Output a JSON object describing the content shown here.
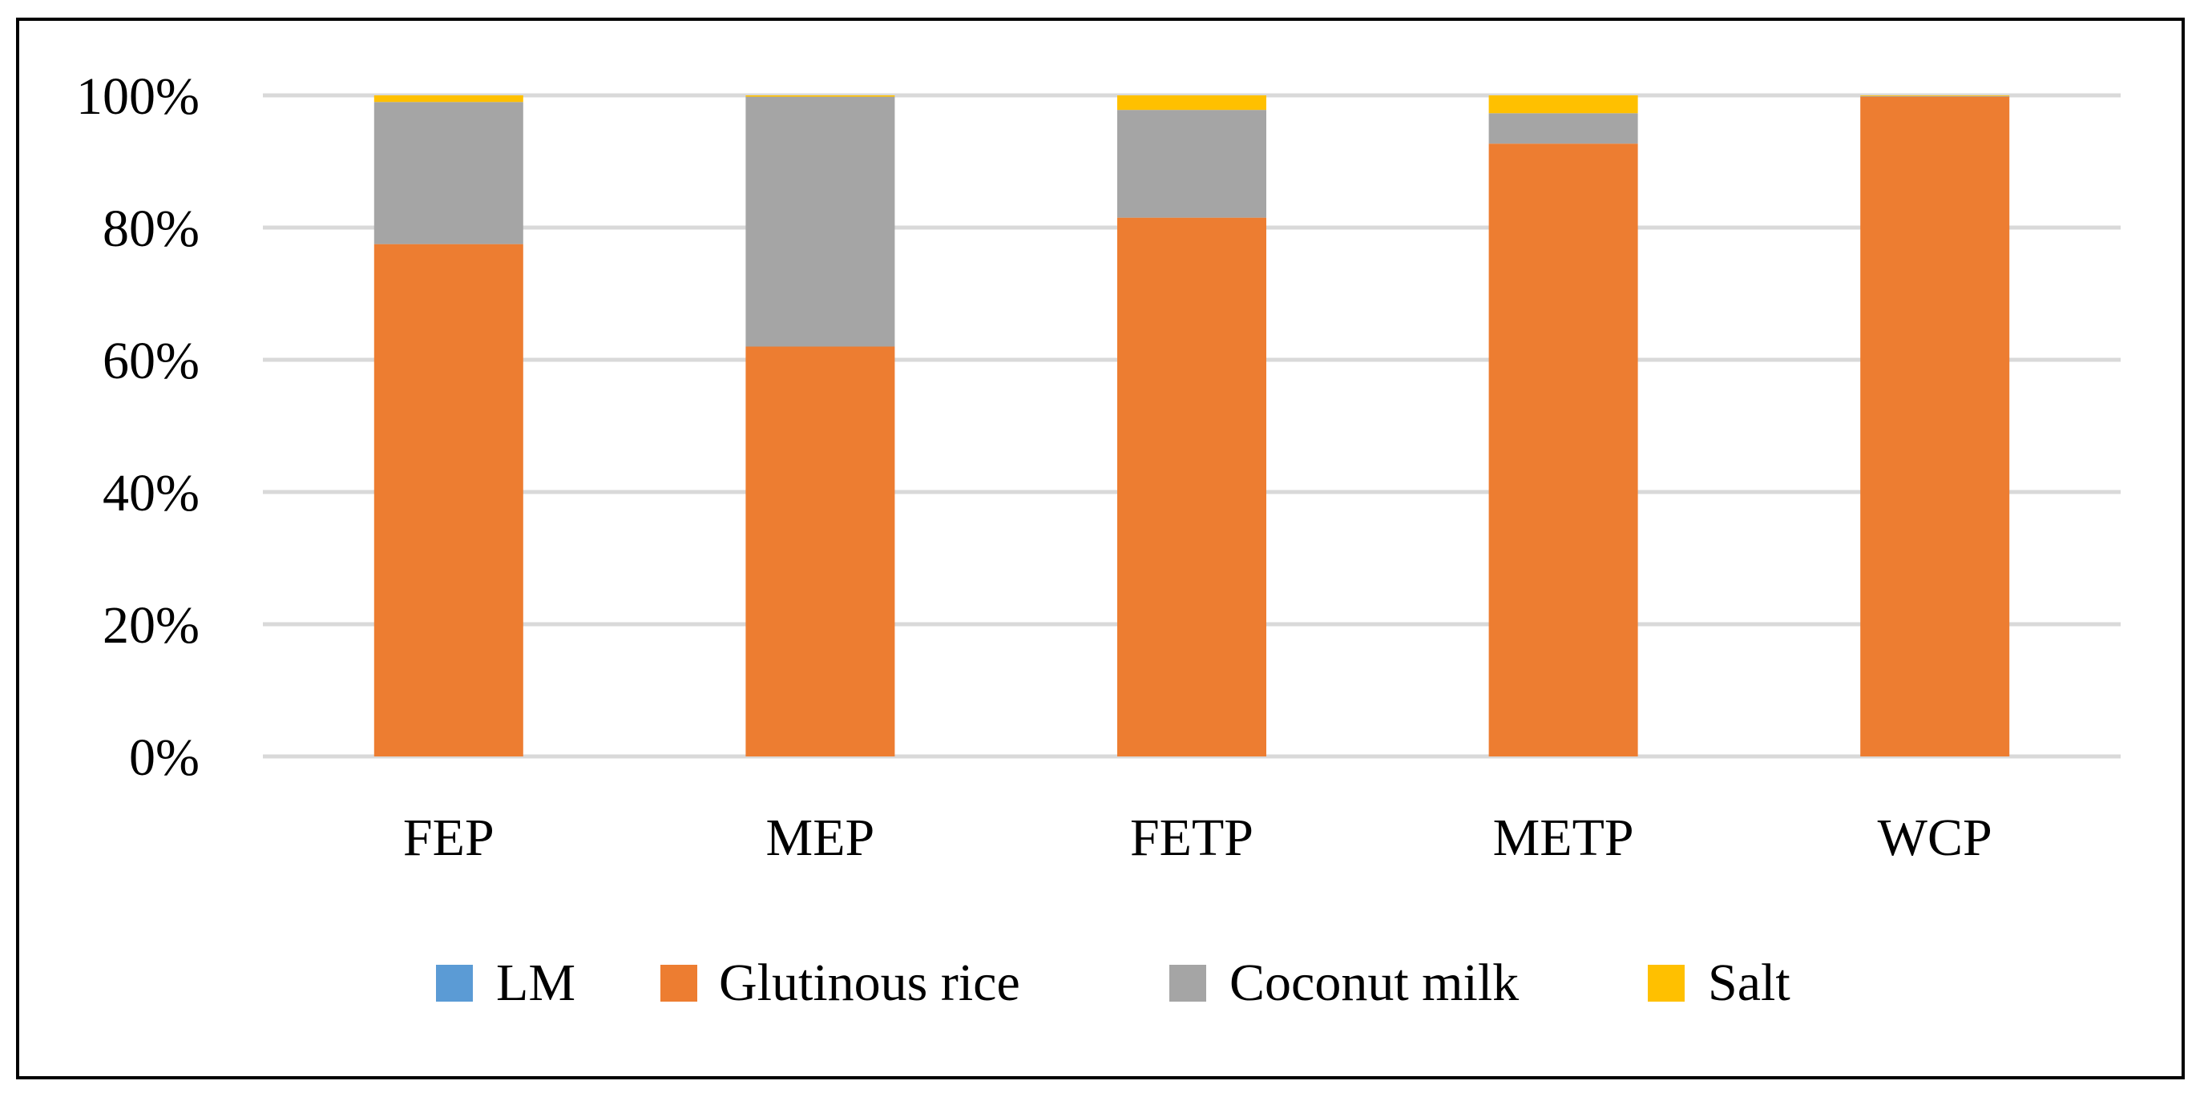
{
  "chart_data": {
    "type": "bar",
    "stacked": true,
    "percent": true,
    "categories": [
      "FEP",
      "MEP",
      "FETP",
      "METP",
      "WCP"
    ],
    "series": [
      {
        "name": "LM",
        "color": "#5B9BD5",
        "values": [
          0.0,
          0.0,
          0.0,
          0.0,
          0.0
        ]
      },
      {
        "name": "Glutinous rice",
        "color": "#ED7D31",
        "values": [
          77.5,
          62.0,
          81.5,
          92.7,
          99.8
        ]
      },
      {
        "name": "Coconut milk",
        "color": "#A5A5A5",
        "values": [
          21.5,
          37.8,
          16.3,
          4.6,
          0.1
        ]
      },
      {
        "name": "Salt",
        "color": "#FFC000",
        "values": [
          1.0,
          0.2,
          2.2,
          2.7,
          0.1
        ]
      }
    ],
    "yticks": [
      "0%",
      "20%",
      "40%",
      "60%",
      "80%",
      "100%"
    ],
    "ylim": [
      0,
      100
    ],
    "grid": true,
    "legend": "bottom",
    "title": "",
    "xlabel": "",
    "ylabel": ""
  },
  "colors": {
    "grid": "#D9D9D9",
    "axis": "#D9D9D9",
    "frame": "#000000"
  }
}
